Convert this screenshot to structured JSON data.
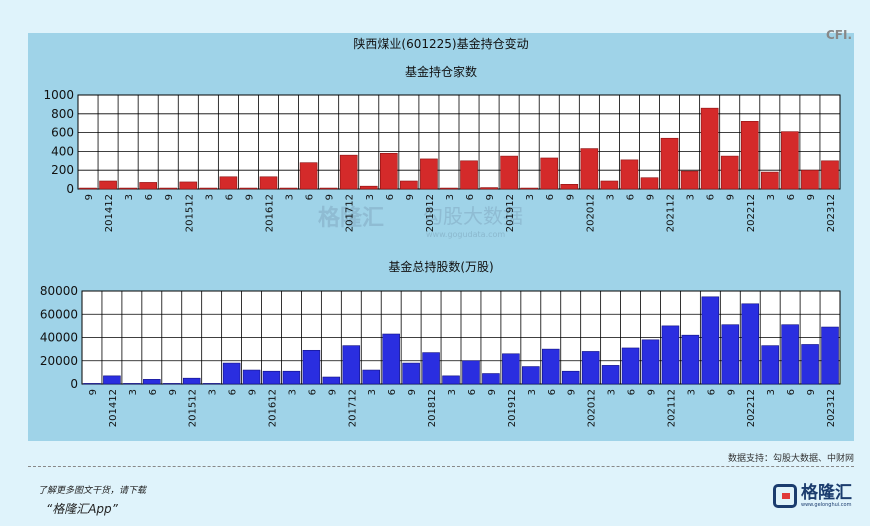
{
  "title": "陕西煤业(601225)基金持仓变动",
  "corner_label": "CFI.",
  "watermark": {
    "brand": "格隆汇",
    "text": "勾股大数据",
    "url": "www.gogudata.com"
  },
  "source": "数据支持：勾股大数据、中财网",
  "promo": {
    "line1": "了解更多图文干货，请下载",
    "line2": "“格隆汇App”"
  },
  "brand": {
    "name": "格隆汇",
    "site": "www.gelonghui.com"
  },
  "colors": {
    "panel": "#9fd3e8",
    "plot_bg": "#ffffff",
    "red_bar": "#d42a2a",
    "blue_bar": "#2a2ee0"
  },
  "chart_data": [
    {
      "type": "bar",
      "title": "基金持仓家数",
      "categories": [
        "9",
        "201412",
        "3",
        "6",
        "9",
        "201512",
        "3",
        "6",
        "9",
        "201612",
        "3",
        "6",
        "9",
        "201712",
        "3",
        "6",
        "9",
        "201812",
        "3",
        "6",
        "9",
        "201912",
        "3",
        "6",
        "9",
        "202012",
        "3",
        "6",
        "9",
        "202112",
        "3",
        "6",
        "9",
        "202212",
        "3",
        "6",
        "9",
        "202312"
      ],
      "values": [
        10,
        85,
        10,
        70,
        10,
        75,
        10,
        130,
        10,
        130,
        10,
        280,
        10,
        360,
        30,
        380,
        85,
        320,
        10,
        300,
        15,
        350,
        10,
        330,
        50,
        430,
        85,
        310,
        120,
        540,
        190,
        860,
        350,
        720,
        180,
        610,
        200,
        300
      ],
      "ylim": [
        0,
        1000
      ],
      "yticks": [
        0,
        200,
        400,
        600,
        800,
        1000
      ]
    },
    {
      "type": "bar",
      "title": "基金总持股数(万股)",
      "categories": [
        "9",
        "201412",
        "3",
        "6",
        "9",
        "201512",
        "3",
        "6",
        "9",
        "201612",
        "3",
        "6",
        "9",
        "201712",
        "3",
        "6",
        "9",
        "201812",
        "3",
        "6",
        "9",
        "201912",
        "3",
        "6",
        "9",
        "202012",
        "3",
        "6",
        "9",
        "202112",
        "3",
        "6",
        "9",
        "202212",
        "3",
        "6",
        "9",
        "202312"
      ],
      "values": [
        500,
        7000,
        500,
        4000,
        500,
        5000,
        500,
        18000,
        12000,
        11000,
        11000,
        29000,
        6000,
        33000,
        12000,
        43000,
        18000,
        27000,
        7000,
        20000,
        9000,
        26000,
        15000,
        30000,
        11000,
        28000,
        16000,
        31000,
        38000,
        50000,
        42000,
        75000,
        51000,
        69000,
        33000,
        51000,
        34000,
        49000
      ],
      "ylim": [
        0,
        80000
      ],
      "yticks": [
        0,
        20000,
        40000,
        60000,
        80000
      ]
    }
  ]
}
